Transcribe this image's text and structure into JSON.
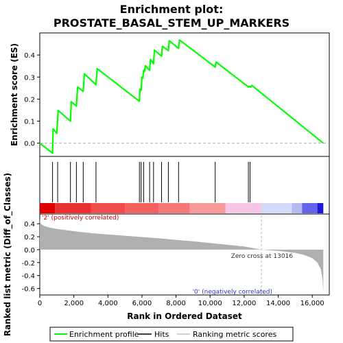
{
  "chart_data": [
    {
      "type": "line",
      "panel": "enrichment",
      "title": "Enrichment plot:",
      "subtitle": "PROSTATE_BASAL_STEM_UP_MARKERS",
      "ylabel": "Enrichment score (ES)",
      "ylim": [
        -0.06,
        0.5
      ],
      "xlim": [
        0,
        17000
      ],
      "yticks": [
        "0.0",
        "0.1",
        "0.2",
        "0.3",
        "0.4"
      ],
      "color": "#00ff00",
      "x": [
        0,
        750,
        780,
        1000,
        1080,
        1800,
        1850,
        2150,
        2220,
        2550,
        2620,
        3300,
        3370,
        5850,
        5880,
        5950,
        6000,
        6050,
        6100,
        6150,
        6200,
        6450,
        6500,
        6680,
        6730,
        7150,
        7200,
        7550,
        7600,
        8150,
        8200,
        10300,
        10350,
        12250,
        12300,
        12400,
        12450,
        16650
      ],
      "y": [
        0.0,
        -0.045,
        0.065,
        0.045,
        0.148,
        0.1,
        0.188,
        0.168,
        0.255,
        0.235,
        0.315,
        0.265,
        0.338,
        0.19,
        0.245,
        0.24,
        0.3,
        0.295,
        0.33,
        0.325,
        0.352,
        0.33,
        0.38,
        0.36,
        0.422,
        0.395,
        0.44,
        0.42,
        0.465,
        0.43,
        0.468,
        0.345,
        0.368,
        0.255,
        0.258,
        0.255,
        0.262,
        0.0
      ]
    },
    {
      "type": "hits",
      "panel": "hits",
      "positions": [
        750,
        1050,
        1800,
        2150,
        2550,
        3300,
        5850,
        5950,
        6100,
        6450,
        6680,
        7150,
        7550,
        8150,
        10300,
        12250,
        12350
      ]
    },
    {
      "type": "area",
      "panel": "ranking",
      "ylabel": "Ranked list metric (Diff_of_Classes)",
      "xlabel": "Rank in Ordered Dataset",
      "ylim": [
        -0.7,
        0.55
      ],
      "yticks": [
        "-0.6",
        "-0.4",
        "-0.2",
        "0.0",
        "0.2",
        "0.4"
      ],
      "xticks": [
        "0",
        "2,000",
        "4,000",
        "6,000",
        "8,000",
        "10,000",
        "12,000",
        "14,000",
        "16,000"
      ],
      "color": "#b0b0b0",
      "x": [
        0,
        30,
        100,
        300,
        600,
        1000,
        2000,
        3000,
        4000,
        5000,
        6000,
        7000,
        8000,
        9000,
        10000,
        11000,
        12000,
        13016,
        14000,
        15000,
        15500,
        16000,
        16300,
        16500,
        16600,
        16650
      ],
      "y": [
        0.48,
        0.42,
        0.39,
        0.36,
        0.34,
        0.32,
        0.285,
        0.255,
        0.235,
        0.215,
        0.195,
        0.175,
        0.152,
        0.128,
        0.102,
        0.077,
        0.05,
        0.0,
        -0.02,
        -0.05,
        -0.08,
        -0.13,
        -0.2,
        -0.3,
        -0.45,
        -0.66
      ],
      "annotations": [
        "'2' (positively correlated)",
        "Zero cross at 13016",
        "'0' (negatively correlated)"
      ],
      "zero_cross": 13016
    }
  ],
  "legend": {
    "items": [
      {
        "label": "Enrichment profile",
        "color": "#00ff00",
        "kind": "line"
      },
      {
        "label": "Hits",
        "color": "#000000",
        "kind": "line"
      },
      {
        "label": "Ranking metric scores",
        "color": "#c0c0c0",
        "kind": "line"
      }
    ]
  }
}
